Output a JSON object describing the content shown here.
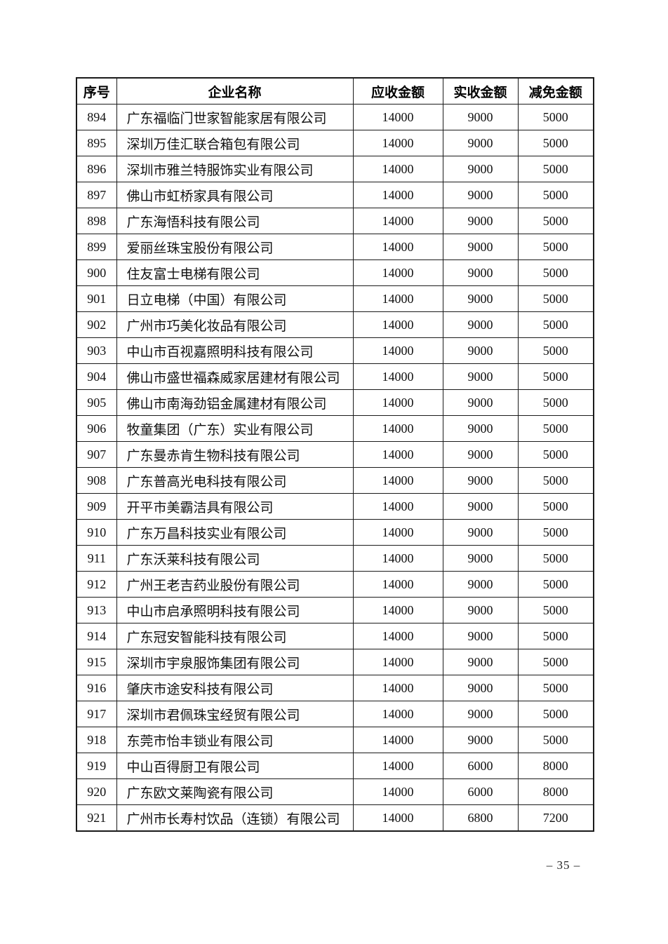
{
  "page": {
    "footer_page_number": "– 35 –"
  },
  "table": {
    "columns": [
      "序号",
      "企业名称",
      "应收金额",
      "实收金额",
      "减免金额"
    ],
    "rows": [
      {
        "no": "894",
        "name": "广东福临门世家智能家居有限公司",
        "receivable": "14000",
        "received": "9000",
        "reduction": "5000"
      },
      {
        "no": "895",
        "name": "深圳万佳汇联合箱包有限公司",
        "receivable": "14000",
        "received": "9000",
        "reduction": "5000"
      },
      {
        "no": "896",
        "name": "深圳市雅兰特服饰实业有限公司",
        "receivable": "14000",
        "received": "9000",
        "reduction": "5000"
      },
      {
        "no": "897",
        "name": "佛山市虹桥家具有限公司",
        "receivable": "14000",
        "received": "9000",
        "reduction": "5000"
      },
      {
        "no": "898",
        "name": "广东海悟科技有限公司",
        "receivable": "14000",
        "received": "9000",
        "reduction": "5000"
      },
      {
        "no": "899",
        "name": "爱丽丝珠宝股份有限公司",
        "receivable": "14000",
        "received": "9000",
        "reduction": "5000"
      },
      {
        "no": "900",
        "name": "住友富士电梯有限公司",
        "receivable": "14000",
        "received": "9000",
        "reduction": "5000"
      },
      {
        "no": "901",
        "name": "日立电梯（中国）有限公司",
        "receivable": "14000",
        "received": "9000",
        "reduction": "5000"
      },
      {
        "no": "902",
        "name": "广州市巧美化妆品有限公司",
        "receivable": "14000",
        "received": "9000",
        "reduction": "5000"
      },
      {
        "no": "903",
        "name": "中山市百视嘉照明科技有限公司",
        "receivable": "14000",
        "received": "9000",
        "reduction": "5000"
      },
      {
        "no": "904",
        "name": "佛山市盛世福森威家居建材有限公司",
        "receivable": "14000",
        "received": "9000",
        "reduction": "5000"
      },
      {
        "no": "905",
        "name": "佛山市南海劲铝金属建材有限公司",
        "receivable": "14000",
        "received": "9000",
        "reduction": "5000"
      },
      {
        "no": "906",
        "name": "牧童集团（广东）实业有限公司",
        "receivable": "14000",
        "received": "9000",
        "reduction": "5000"
      },
      {
        "no": "907",
        "name": "广东曼赤肯生物科技有限公司",
        "receivable": "14000",
        "received": "9000",
        "reduction": "5000"
      },
      {
        "no": "908",
        "name": "广东普高光电科技有限公司",
        "receivable": "14000",
        "received": "9000",
        "reduction": "5000"
      },
      {
        "no": "909",
        "name": "开平市美霸洁具有限公司",
        "receivable": "14000",
        "received": "9000",
        "reduction": "5000"
      },
      {
        "no": "910",
        "name": "广东万昌科技实业有限公司",
        "receivable": "14000",
        "received": "9000",
        "reduction": "5000"
      },
      {
        "no": "911",
        "name": "广东沃莱科技有限公司",
        "receivable": "14000",
        "received": "9000",
        "reduction": "5000"
      },
      {
        "no": "912",
        "name": "广州王老吉药业股份有限公司",
        "receivable": "14000",
        "received": "9000",
        "reduction": "5000"
      },
      {
        "no": "913",
        "name": "中山市启承照明科技有限公司",
        "receivable": "14000",
        "received": "9000",
        "reduction": "5000"
      },
      {
        "no": "914",
        "name": "广东冠安智能科技有限公司",
        "receivable": "14000",
        "received": "9000",
        "reduction": "5000"
      },
      {
        "no": "915",
        "name": "深圳市宇泉服饰集团有限公司",
        "receivable": "14000",
        "received": "9000",
        "reduction": "5000"
      },
      {
        "no": "916",
        "name": "肇庆市途安科技有限公司",
        "receivable": "14000",
        "received": "9000",
        "reduction": "5000"
      },
      {
        "no": "917",
        "name": "深圳市君佩珠宝经贸有限公司",
        "receivable": "14000",
        "received": "9000",
        "reduction": "5000"
      },
      {
        "no": "918",
        "name": "东莞市怡丰锁业有限公司",
        "receivable": "14000",
        "received": "9000",
        "reduction": "5000"
      },
      {
        "no": "919",
        "name": "中山百得厨卫有限公司",
        "receivable": "14000",
        "received": "6000",
        "reduction": "8000"
      },
      {
        "no": "920",
        "name": "广东欧文莱陶瓷有限公司",
        "receivable": "14000",
        "received": "6000",
        "reduction": "8000"
      },
      {
        "no": "921",
        "name": "广州市长寿村饮品（连锁）有限公司",
        "receivable": "14000",
        "received": "6800",
        "reduction": "7200"
      }
    ]
  }
}
